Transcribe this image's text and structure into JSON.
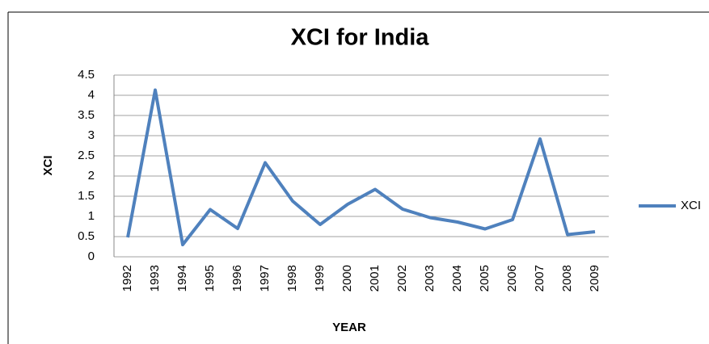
{
  "chart_data": {
    "type": "line",
    "title": "XCI for India",
    "x_label": "YEAR",
    "y_label": "XCI",
    "categories": [
      "1992",
      "1993",
      "1994",
      "1995",
      "1996",
      "1997",
      "1998",
      "1999",
      "2000",
      "2001",
      "2002",
      "2003",
      "2004",
      "2005",
      "2006",
      "2007",
      "2008",
      "2009"
    ],
    "series": [
      {
        "name": "XCI",
        "color": "#4f81bd",
        "values": [
          0.48,
          4.13,
          0.3,
          1.17,
          0.7,
          2.33,
          1.38,
          0.8,
          1.3,
          1.67,
          1.18,
          0.97,
          0.86,
          0.69,
          0.92,
          2.92,
          0.55,
          0.62
        ]
      }
    ],
    "ylim": [
      0,
      4.5
    ],
    "yticks": [
      0,
      0.5,
      1,
      1.5,
      2,
      2.5,
      3,
      3.5,
      4,
      4.5
    ],
    "grid": true,
    "legend": "right"
  }
}
